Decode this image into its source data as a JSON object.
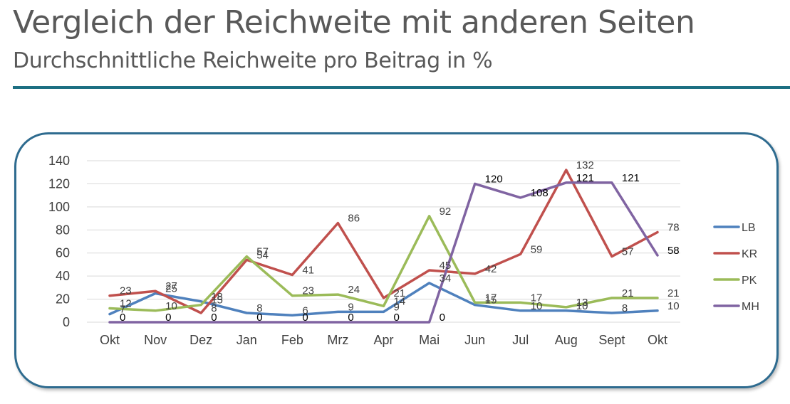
{
  "header": {
    "title": "Vergleich der Reichweite mit anderen Seiten",
    "subtitle": "Durchschnittliche Reichweite pro Beitrag in %"
  },
  "chart_data": {
    "type": "line",
    "categories": [
      "Okt",
      "Nov",
      "Dez",
      "Jan",
      "Feb",
      "Mrz",
      "Apr",
      "Mai",
      "Jun",
      "Jul",
      "Aug",
      "Sept",
      "Okt"
    ],
    "ylim": [
      0,
      140
    ],
    "yticks": [
      0,
      20,
      40,
      60,
      80,
      100,
      120,
      140
    ],
    "grid": true,
    "legend_position": "right",
    "series": [
      {
        "name": "LB",
        "color": "#4f81bd",
        "values": [
          7,
          25,
          18,
          8,
          6,
          9,
          9,
          34,
          15,
          10,
          10,
          8,
          10
        ]
      },
      {
        "name": "KR",
        "color": "#c0504d",
        "values": [
          23,
          27,
          8,
          54,
          41,
          86,
          21,
          45,
          42,
          59,
          132,
          57,
          78
        ]
      },
      {
        "name": "PK",
        "color": "#9bbb59",
        "values": [
          12,
          10,
          15,
          57,
          23,
          24,
          14,
          92,
          17,
          17,
          13,
          21,
          21
        ]
      },
      {
        "name": "MH",
        "color": "#8064a2",
        "values": [
          0,
          0,
          0,
          0,
          0,
          0,
          0,
          0,
          120,
          108,
          121,
          121,
          58
        ]
      }
    ]
  }
}
